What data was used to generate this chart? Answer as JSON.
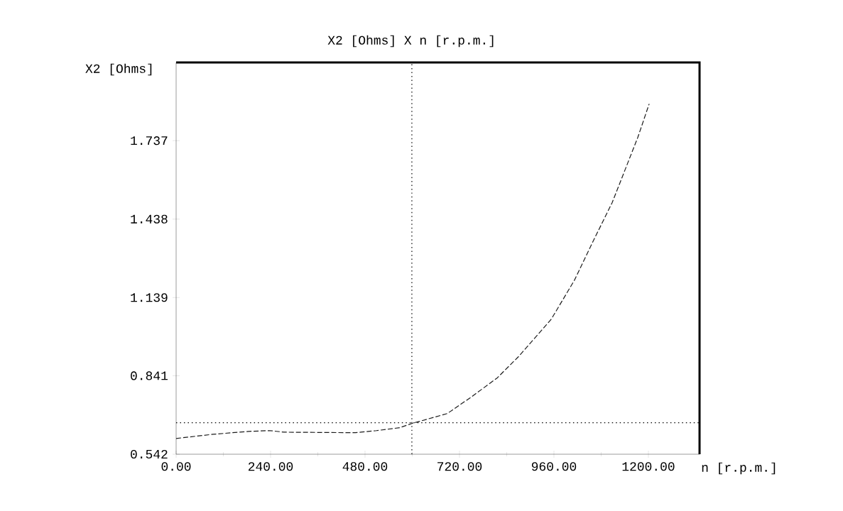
{
  "chart_data": {
    "type": "line",
    "title": "X2 [Ohms]   X   n [r.p.m.]",
    "xlabel": "n [r.p.m.]",
    "ylabel": "X2 [Ohms]",
    "x": [
      0,
      94,
      184,
      238,
      274,
      455,
      509,
      568,
      599,
      689,
      749,
      816,
      870,
      953,
      1012,
      1059,
      1108,
      1173,
      1202
    ],
    "series": [
      {
        "color": "#1a1a1a",
        "line_style": "dashed",
        "values": [
          0.602,
          0.618,
          0.629,
          0.632,
          0.626,
          0.624,
          0.632,
          0.643,
          0.659,
          0.697,
          0.759,
          0.833,
          0.914,
          1.056,
          1.205,
          1.352,
          1.501,
          1.749,
          1.877
        ]
      }
    ],
    "xlim": [
      0,
      1330
    ],
    "ylim": [
      0.542,
      2.035
    ],
    "xticks": [
      {
        "value": 0,
        "label": "0.00"
      },
      {
        "value": 240,
        "label": "240.00"
      },
      {
        "value": 480,
        "label": "480.00"
      },
      {
        "value": 720,
        "label": "720.00"
      },
      {
        "value": 960,
        "label": "960.00"
      },
      {
        "value": 1200,
        "label": "1200.00"
      }
    ],
    "yticks": [
      0.542,
      0.841,
      1.139,
      1.438,
      1.737
    ],
    "ref_lines": [
      {
        "axis": "x",
        "value": 599,
        "line_style": "dotted"
      },
      {
        "axis": "y",
        "value": 0.662,
        "line_style": "dotted"
      }
    ],
    "grid": false,
    "marker": "none"
  }
}
